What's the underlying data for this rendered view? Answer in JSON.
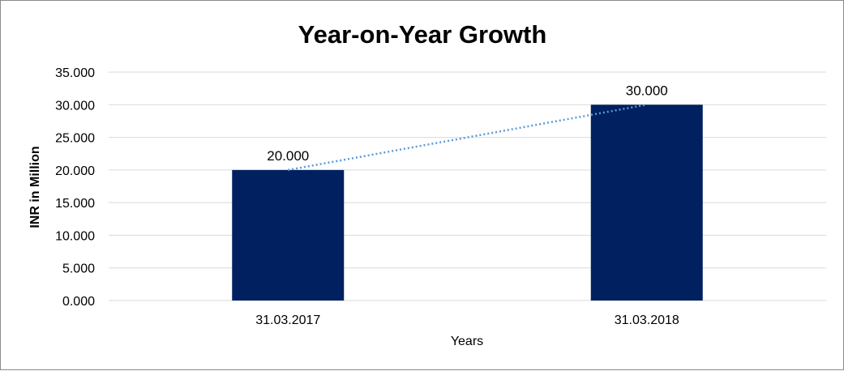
{
  "chart_data": {
    "type": "bar",
    "title": "Year-on-Year Growth",
    "xlabel": "Years",
    "ylabel": "INR in Million",
    "categories": [
      "31.03.2017",
      "31.03.2018"
    ],
    "values": [
      20,
      30
    ],
    "data_labels": [
      "20.000",
      "30.000"
    ],
    "ylim": [
      0,
      35
    ],
    "yticks": [
      0,
      5,
      10,
      15,
      20,
      25,
      30,
      35
    ],
    "ytick_labels": [
      "0.000",
      "5.000",
      "10.000",
      "15.000",
      "20.000",
      "25.000",
      "30.000",
      "35.000"
    ],
    "grid": true,
    "legend": "none",
    "trendline": {
      "type": "linear",
      "style": "dotted"
    },
    "colors": {
      "bar": "#002060",
      "trendline": "#5b9bd5",
      "grid": "#d9d9d9",
      "axis": "#d9d9d9"
    }
  }
}
